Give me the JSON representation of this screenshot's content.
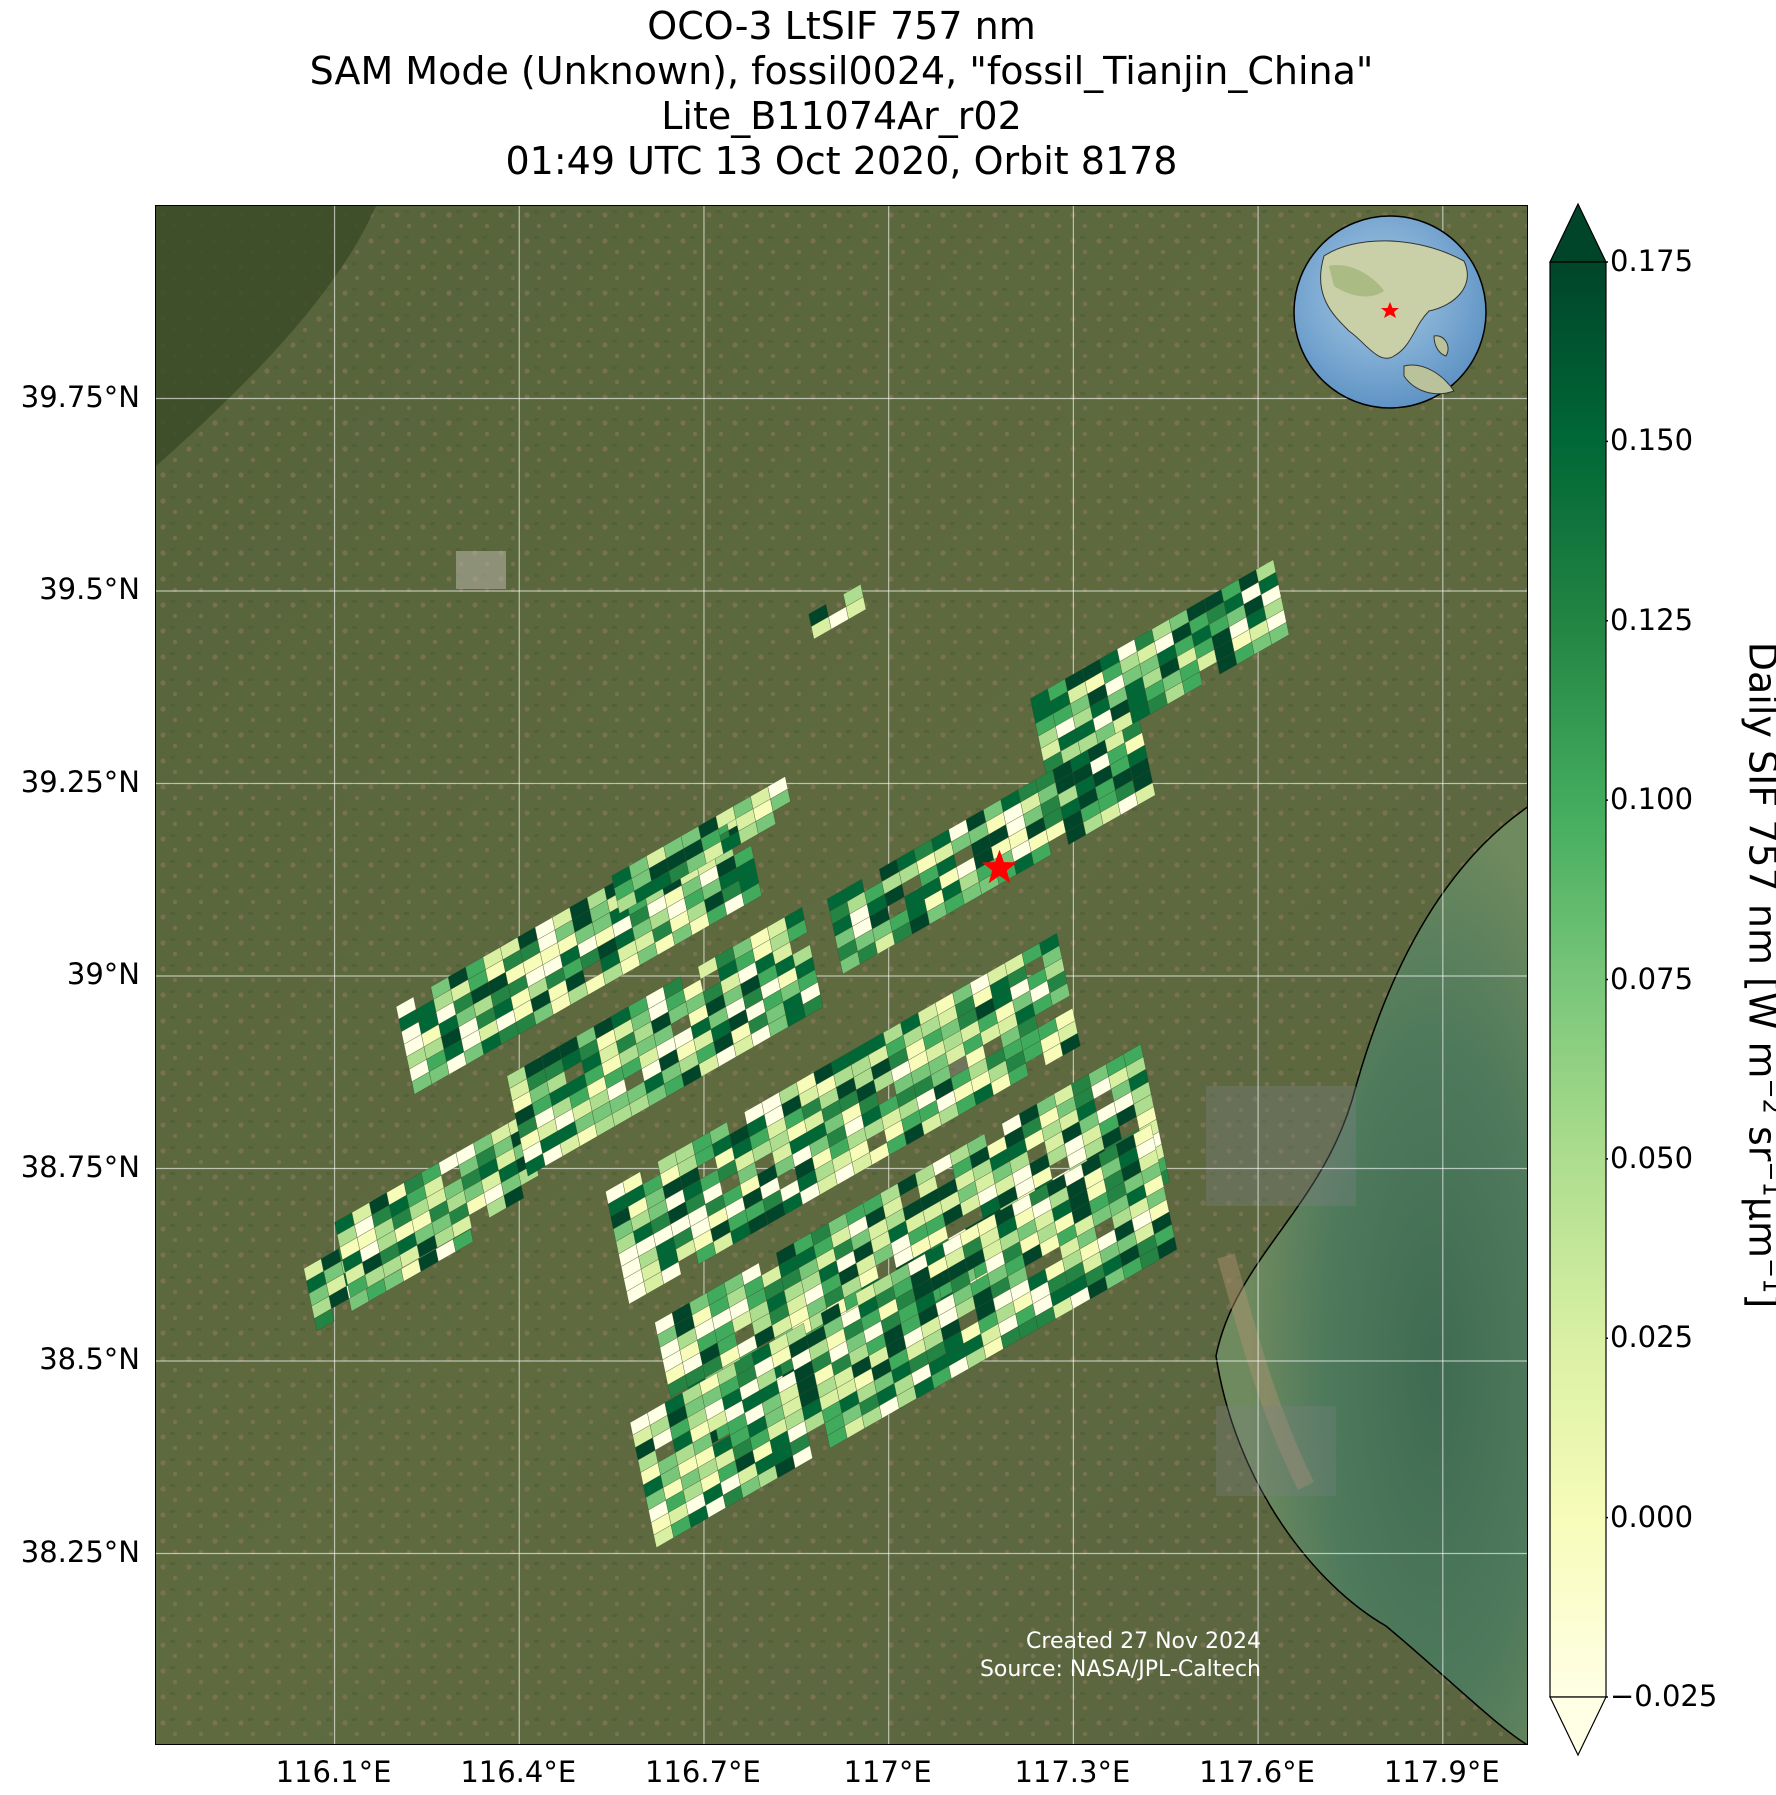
{
  "title": {
    "line1": "OCO-3 LtSIF 757 nm",
    "line2": "SAM Mode (Unknown), fossil0024, \"fossil_Tianjin_China\"",
    "line3": "Lite_B11074Ar_r02",
    "line4": "01:49 UTC 13 Oct 2020, Orbit 8178"
  },
  "credit": {
    "created": "Created 27 Nov 2024",
    "source": "Source: NASA/JPL-Caltech"
  },
  "colorbar": {
    "ticks": [
      "0.175",
      "0.150",
      "0.125",
      "0.100",
      "0.075",
      "0.050",
      "0.025",
      "0.000",
      "−0.025"
    ],
    "title_main": "Daily SIF 757 nm [W m",
    "title_sup1": "−2",
    "title_mid1": " sr",
    "title_sup2": "−1",
    "title_mid2": "μm",
    "title_sup3": "−1",
    "title_end": "]",
    "colormap": "YlGn",
    "range": [
      -0.025,
      0.175
    ],
    "extend": "both"
  },
  "chart_data": {
    "type": "heatmap",
    "description_visible": "Satellite image map with SIF footprints",
    "lat_ticks": [
      "39.75°N",
      "39.5°N",
      "39.25°N",
      "39°N",
      "38.75°N",
      "38.5°N",
      "38.25°N"
    ],
    "lat_values": [
      39.75,
      39.5,
      39.25,
      39.0,
      38.75,
      38.5,
      38.25
    ],
    "lon_ticks": [
      "116.1°E",
      "116.4°E",
      "116.7°E",
      "117°E",
      "117.3°E",
      "117.6°E",
      "117.9°E"
    ],
    "lon_values": [
      116.1,
      116.4,
      116.7,
      117.0,
      117.3,
      117.6,
      117.9
    ],
    "xlim": [
      115.81,
      118.04
    ],
    "ylim": [
      38.0,
      40.0
    ],
    "target": {
      "lon": 117.18,
      "lat": 39.14,
      "marker": "red-star"
    },
    "colorbar_range": [
      -0.025,
      0.175
    ],
    "grid": true,
    "inset": "globe-asia-with-red-star"
  }
}
